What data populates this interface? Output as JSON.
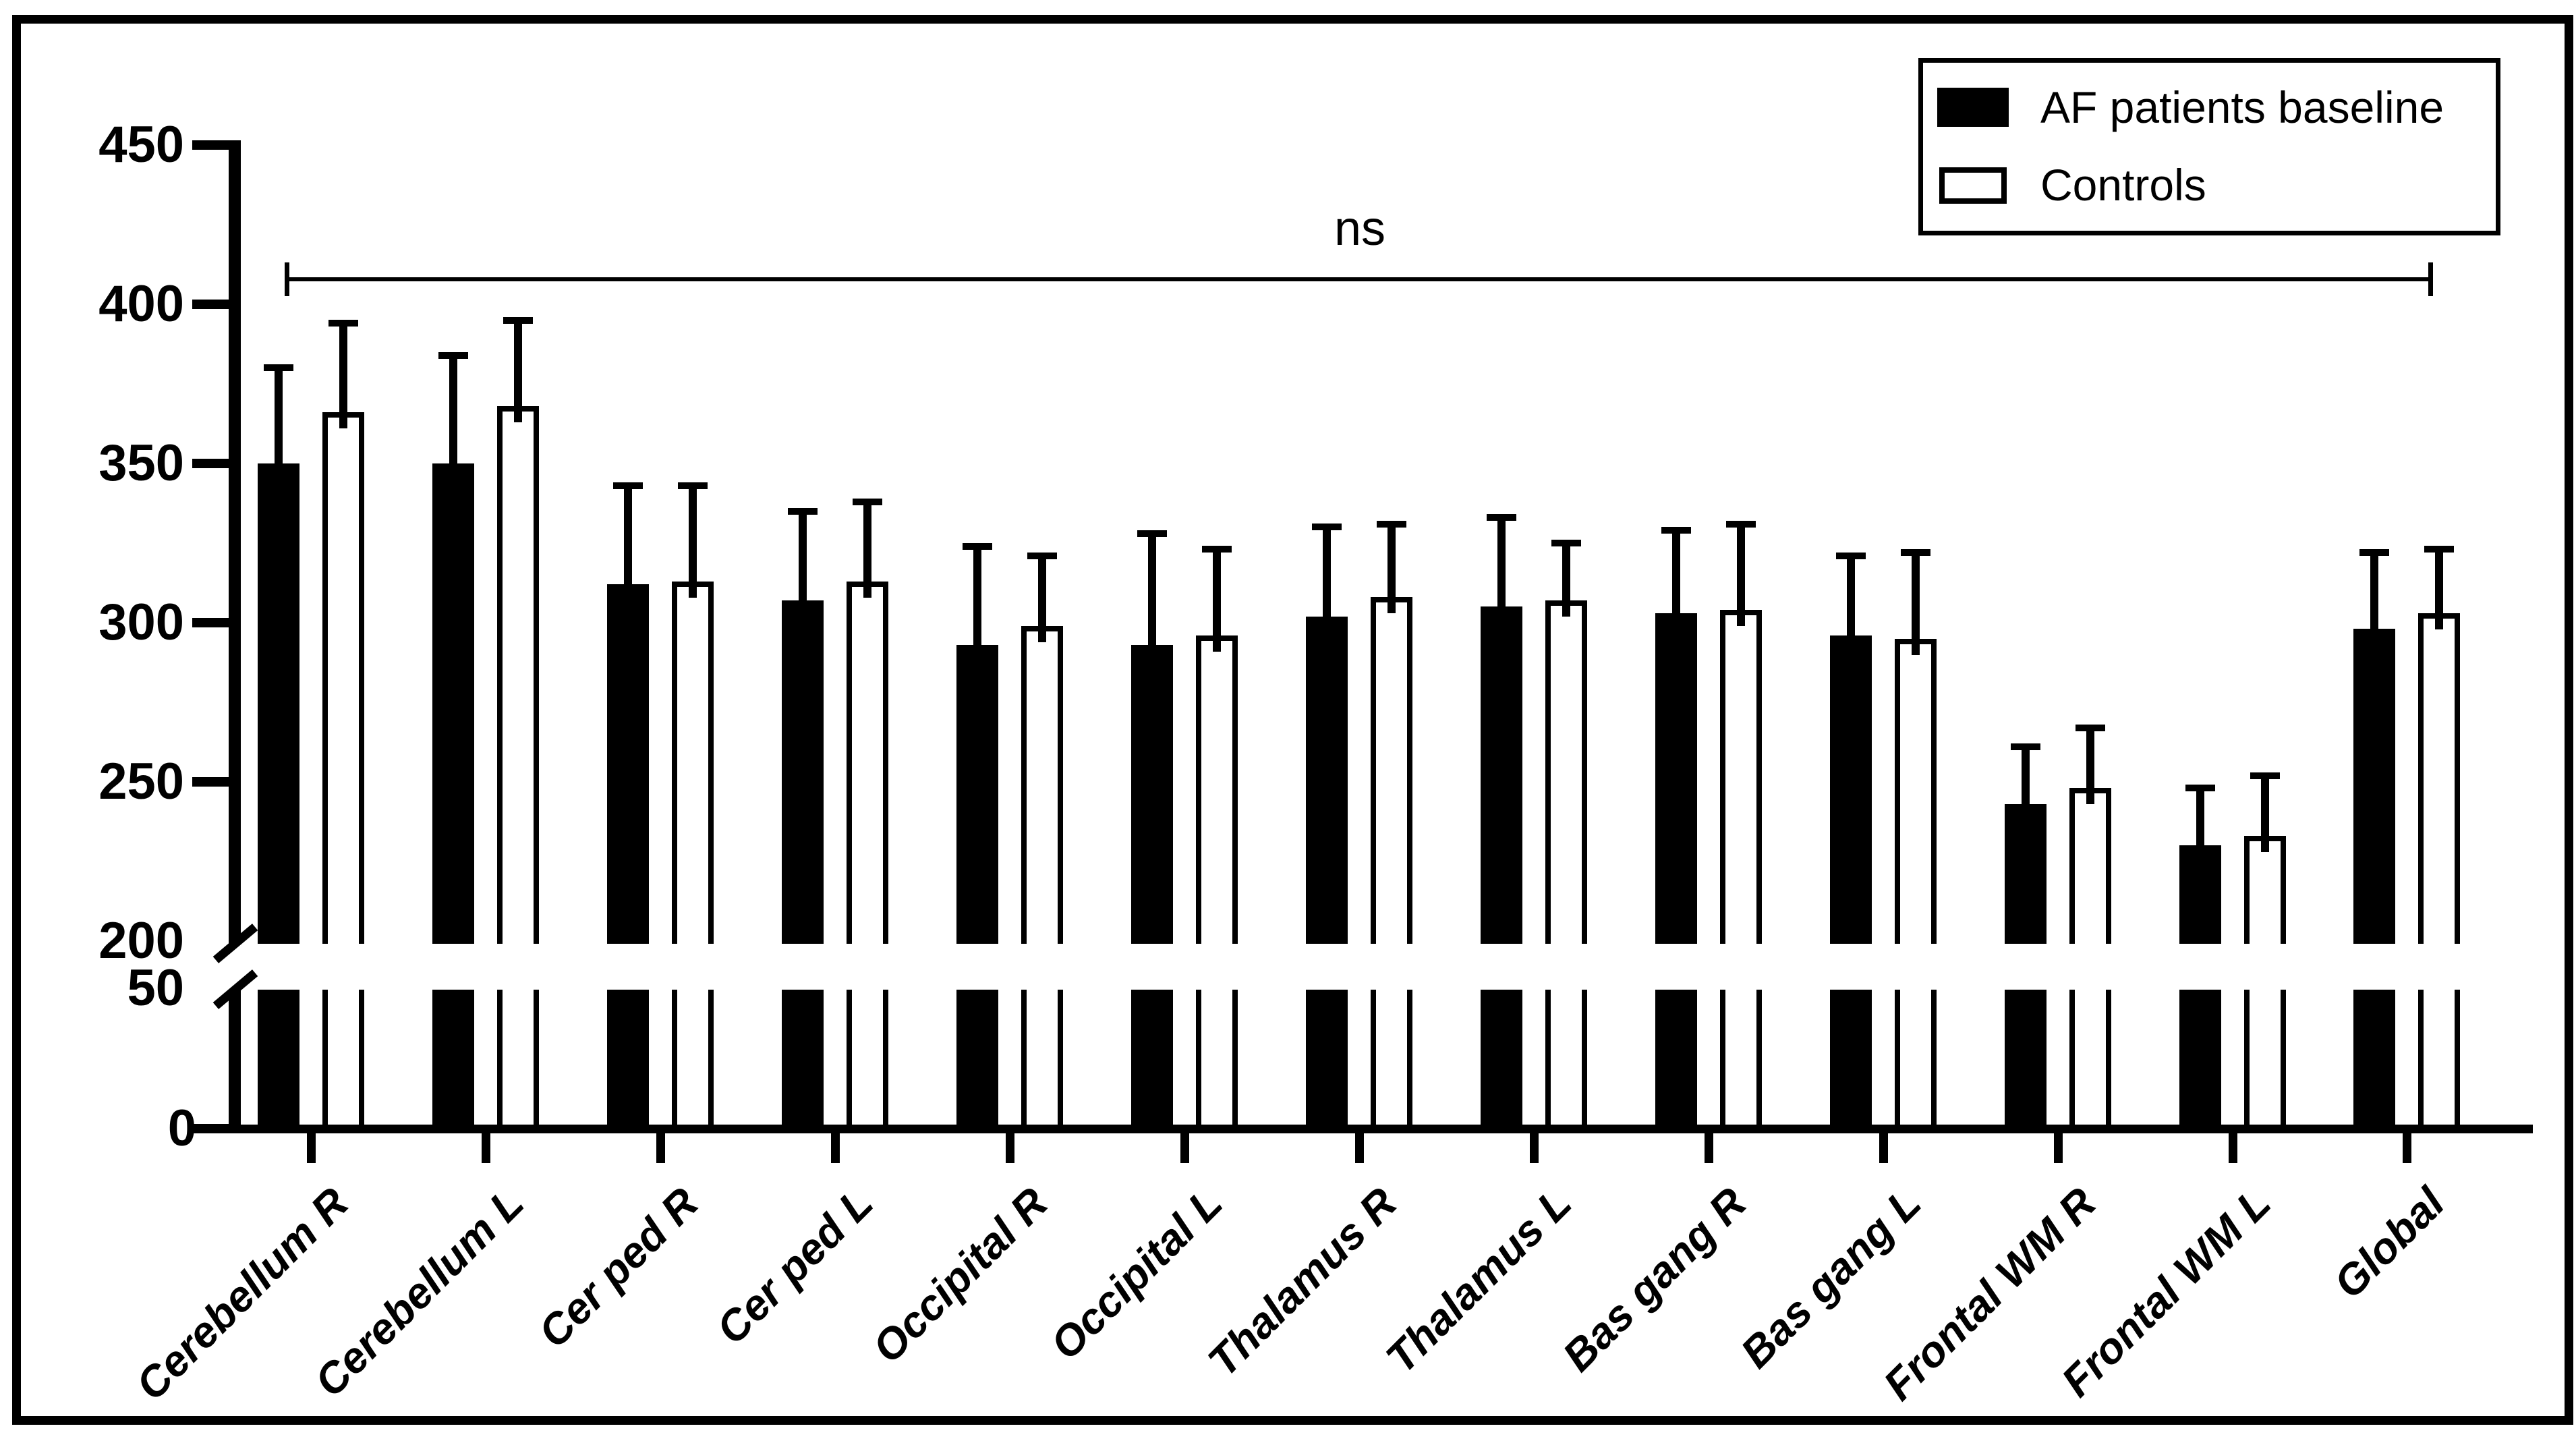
{
  "figure": {
    "type": "grouped-bar-chart-with-error-bars",
    "background": "#ffffff",
    "frame_color": "#000000"
  },
  "legend": {
    "items": [
      {
        "label": "AF patients baseline",
        "swatch_fill": "#000000",
        "swatch_style": "filled"
      },
      {
        "label": "Controls",
        "swatch_fill": "#ffffff",
        "swatch_style": "outlined"
      }
    ]
  },
  "annotation": {
    "significance_label": "ns"
  },
  "chart_data": {
    "type": "bar",
    "title": "",
    "xlabel": "",
    "ylabel": "",
    "grid": false,
    "legend_position": "top-right",
    "y_axis": {
      "ticks": [
        0,
        50,
        200,
        250,
        300,
        350,
        400,
        450
      ],
      "axis_break": {
        "between": [
          50,
          200
        ]
      },
      "upper_range": [
        200,
        450
      ],
      "lower_range": [
        0,
        50
      ]
    },
    "categories": [
      "Cerebellum R",
      "Cerebellum L",
      "Cer ped R",
      "Cer ped L",
      "Occipital R",
      "Occipital L",
      "Thalamus R",
      "Thalamus L",
      "Bas gang R",
      "Bas gang L",
      "Frontal WM R",
      "Frontal WM L",
      "Global"
    ],
    "series": [
      {
        "name": "AF patients baseline",
        "fill": "#000000",
        "outline": "#000000",
        "values": [
          350,
          350,
          312,
          307,
          293,
          293,
          302,
          305,
          303,
          296,
          243,
          230,
          298
        ],
        "error_sd_upper": [
          30,
          34,
          31,
          28,
          31,
          35,
          28,
          28,
          26,
          25,
          18,
          18,
          24
        ]
      },
      {
        "name": "Controls",
        "fill": "#ffffff",
        "outline": "#000000",
        "values": [
          366,
          368,
          313,
          313,
          299,
          296,
          308,
          307,
          304,
          295,
          248,
          233,
          303
        ],
        "error_sd_upper": [
          28,
          27,
          30,
          25,
          22,
          27,
          23,
          18,
          27,
          27,
          19,
          19,
          20
        ]
      }
    ],
    "significance_bracket": {
      "text": "ns",
      "from_category": "Cerebellum R",
      "to_category": "Global",
      "y_value": 408
    }
  }
}
